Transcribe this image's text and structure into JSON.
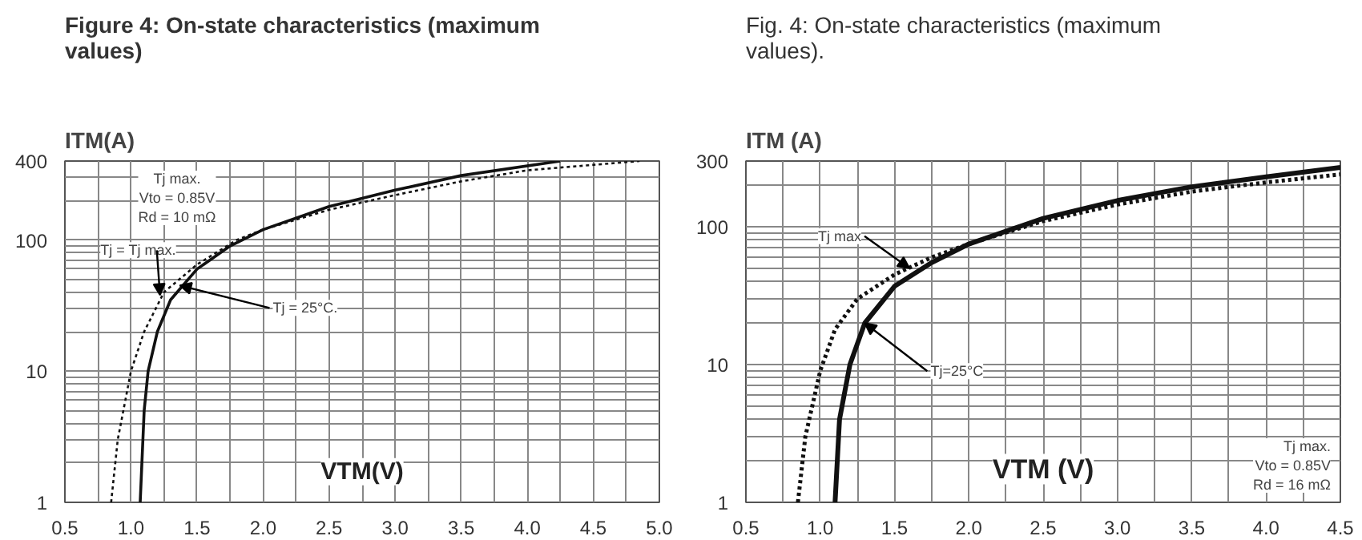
{
  "chart_data": [
    {
      "type": "line",
      "title": "Figure 4: On-state characteristics (maximum values)",
      "xlabel": "VTM(V)",
      "ylabel": "ITM(A)",
      "log": "y",
      "grid": true,
      "marker": "none",
      "xlim": [
        0.5,
        5.0
      ],
      "ylim": [
        1,
        400
      ],
      "xticks": [
        0.5,
        {
          "value": 0.75,
          "label": null
        },
        "1.0",
        {
          "value": 1.25,
          "label": null
        },
        1.5,
        {
          "value": 1.75,
          "label": null
        },
        "2.0",
        {
          "value": 2.25,
          "label": null
        },
        2.5,
        {
          "value": 2.75,
          "label": null
        },
        "3.0",
        {
          "value": 3.25,
          "label": null
        },
        3.5,
        {
          "value": 3.75,
          "label": null
        },
        "4.0",
        {
          "value": 4.25,
          "label": null
        },
        4.5,
        {
          "value": 4.75,
          "label": null
        },
        "5.0"
      ],
      "yticks": [
        1,
        {
          "value": 2,
          "label": null
        },
        {
          "value": 3,
          "label": null
        },
        {
          "value": 4,
          "label": null
        },
        {
          "value": 5,
          "label": null
        },
        {
          "value": 6,
          "label": null
        },
        {
          "value": 7,
          "label": null
        },
        {
          "value": 8,
          "label": null
        },
        {
          "value": 9,
          "label": null
        },
        10,
        {
          "value": 20,
          "label": null
        },
        {
          "value": 30,
          "label": null
        },
        {
          "value": 40,
          "label": null
        },
        {
          "value": 50,
          "label": null
        },
        {
          "value": 60,
          "label": null
        },
        {
          "value": 70,
          "label": null
        },
        {
          "value": 80,
          "label": null
        },
        {
          "value": 90,
          "label": null
        },
        100,
        {
          "value": 200,
          "label": null
        },
        {
          "value": 300,
          "label": null
        },
        400
      ],
      "series": [
        {
          "color": "#111111",
          "line_style": "solid",
          "x": [
            1.07,
            1.1,
            1.13,
            1.2,
            1.3,
            1.5,
            1.75,
            2.0,
            2.5,
            3.0,
            3.5,
            4.25
          ],
          "values": [
            1,
            5,
            10,
            20,
            35,
            60,
            90,
            120,
            180,
            240,
            310,
            400
          ]
        },
        {
          "color": "#111111",
          "line_style": "dotted",
          "x": [
            0.85,
            0.9,
            1.0,
            1.1,
            1.25,
            1.5,
            1.8,
            2.0,
            2.5,
            3.0,
            3.5,
            4.0,
            4.85
          ],
          "values": [
            1,
            3,
            10,
            20,
            40,
            65,
            100,
            120,
            170,
            220,
            280,
            340,
            400
          ]
        }
      ],
      "annotations": [
        "Tj max.\nVto = 0.85V\nRd = 10 mΩ",
        {
          "text": "Tj = Tj max.",
          "x": 1.22,
          "y": 38
        },
        {
          "text": "Tj = 25°C.",
          "x": 1.37,
          "y": 45
        }
      ]
    },
    {
      "type": "line",
      "title": "Fig. 4:    On-state characteristics (maximum values).",
      "xlabel": "VTM (V)",
      "ylabel": "ITM (A)",
      "log": "y",
      "grid": true,
      "marker": "none",
      "xlim": [
        0.5,
        4.5
      ],
      "ylim": [
        1,
        300
      ],
      "xticks": [
        0.5,
        {
          "value": 0.75,
          "label": null
        },
        "1.0",
        {
          "value": 1.25,
          "label": null
        },
        1.5,
        {
          "value": 1.75,
          "label": null
        },
        "2.0",
        {
          "value": 2.25,
          "label": null
        },
        2.5,
        {
          "value": 2.75,
          "label": null
        },
        "3.0",
        {
          "value": 3.25,
          "label": null
        },
        3.5,
        {
          "value": 3.75,
          "label": null
        },
        "4.0",
        {
          "value": 4.25,
          "label": null
        },
        4.5
      ],
      "yticks": [
        1,
        {
          "value": 2,
          "label": null
        },
        {
          "value": 3,
          "label": null
        },
        {
          "value": 4,
          "label": null
        },
        {
          "value": 5,
          "label": null
        },
        {
          "value": 6,
          "label": null
        },
        {
          "value": 7,
          "label": null
        },
        {
          "value": 8,
          "label": null
        },
        {
          "value": 9,
          "label": null
        },
        10,
        {
          "value": 20,
          "label": null
        },
        {
          "value": 30,
          "label": null
        },
        {
          "value": 40,
          "label": null
        },
        {
          "value": 50,
          "label": null
        },
        {
          "value": 60,
          "label": null
        },
        {
          "value": 70,
          "label": null
        },
        {
          "value": 80,
          "label": null
        },
        {
          "value": 90,
          "label": null
        },
        100,
        {
          "value": 200,
          "label": null
        },
        300
      ],
      "series": [
        {
          "color": "#111111",
          "line_style": "solid",
          "x": [
            1.1,
            1.13,
            1.2,
            1.3,
            1.5,
            1.75,
            2.0,
            2.5,
            3.0,
            3.5,
            4.0,
            4.5
          ],
          "values": [
            1,
            4,
            10,
            20,
            37,
            55,
            75,
            115,
            155,
            195,
            230,
            270
          ]
        },
        {
          "color": "#111111",
          "line_style": "dotted",
          "x": [
            0.85,
            0.9,
            1.0,
            1.1,
            1.25,
            1.5,
            1.75,
            2.0,
            2.5,
            3.0,
            3.5,
            4.0,
            4.5
          ],
          "values": [
            1,
            3,
            9,
            18,
            30,
            45,
            60,
            75,
            110,
            145,
            180,
            210,
            240
          ]
        }
      ],
      "annotations": [
        "Tj max.\nVto = 0.85V\nRd = 16 mΩ",
        {
          "text": "Tj max",
          "x": 1.6,
          "y": 50
        },
        {
          "text": "Tj=25°C",
          "x": 1.3,
          "y": 20
        }
      ]
    }
  ]
}
